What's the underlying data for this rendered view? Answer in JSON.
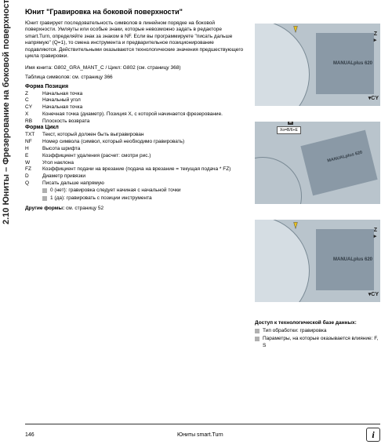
{
  "sidebar": "2.10 Юниты – Фрезерование на боковой поверхности",
  "title": "Юнит \"Гравировка на боковой поверхности\"",
  "intro": "Юнит гравирует последовательность символов в линейном порядке на боковой поверхности. Умляуты или особые знаки, которые невозможно задать в редакторе smart.Turn, определяйте знак за знаком в NF. Если вы программируете \"писать дальше напрямую\" (Q=1), то смена инструмента и предварительное позиционирование подавляются. Действительными оказываются технологические значения предшествующего цикла гравировки.",
  "unit_name": "Имя юнита: G802_GRA_MANT_C / Цикл: G802 (см. страницу 368)",
  "table_link": "Таблица символов: см. страницу 366",
  "form_pos_header": "Форма Позиция",
  "pos_params": [
    {
      "k": "Z",
      "d": "Начальная точка"
    },
    {
      "k": "C",
      "d": "Начальный угол"
    },
    {
      "k": "CY",
      "d": "Начальная точка"
    },
    {
      "k": "X",
      "d": "Конечная точка (диаметр). Позиция X, с которой начинается фрезерование."
    },
    {
      "k": "RB",
      "d": "Плоскость возврата"
    }
  ],
  "form_cycle_header": "Форма Цикл",
  "cycle_params": [
    {
      "k": "TXT",
      "d": "Текст, который должен быть выгравирован"
    },
    {
      "k": "NF",
      "d": "Номер символа (символ, который необходимо гравировать)"
    },
    {
      "k": "H",
      "d": "Высота шрифта"
    },
    {
      "k": "E",
      "d": "Коэффициент удаления (расчет: смотри рис.)"
    },
    {
      "k": "W",
      "d": "Угол наклона"
    },
    {
      "k": "FZ",
      "d": "Коэффициент подачи на врезание (подача на врезание = текущая подача * FZ)"
    },
    {
      "k": "D",
      "d": "Диаметр привязки"
    },
    {
      "k": "Q",
      "d": "Писать дальше напрямую"
    }
  ],
  "q_opts": [
    "0 (нет): гравировка следует начиная с начальной точки",
    "1 (да): гравировать с позиции инструмента"
  ],
  "other_forms_label": "Другие формы:",
  "other_forms_ref": " см. страницу 52",
  "fig": {
    "bg": "#b9c4cc",
    "panel_text": "MANUALplus 620",
    "eq": "Xо=B/6+E",
    "e_label": "E"
  },
  "db": {
    "title": "Доступ к технологической базе данных:",
    "items": [
      "Тип обработки: гравировка",
      "Параметры, на которые оказывается влияние: F, S"
    ]
  },
  "footer": {
    "page": "146",
    "right": "Юниты smart.Turn"
  }
}
